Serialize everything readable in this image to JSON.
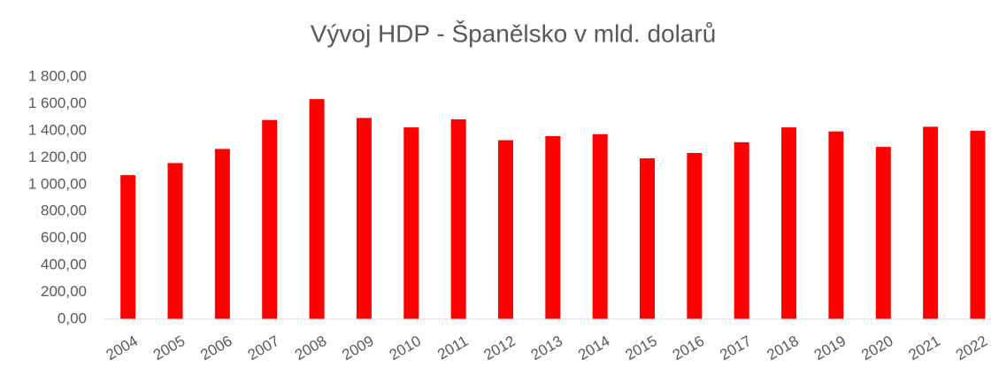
{
  "chart_data": {
    "type": "bar",
    "title": "Vývoj HDP - Španělsko v mld. dolarů",
    "categories": [
      "2004",
      "2005",
      "2006",
      "2007",
      "2008",
      "2009",
      "2010",
      "2011",
      "2012",
      "2013",
      "2014",
      "2015",
      "2016",
      "2017",
      "2018",
      "2019",
      "2020",
      "2021",
      "2022"
    ],
    "values": [
      1070,
      1160,
      1265,
      1480,
      1635,
      1495,
      1425,
      1485,
      1330,
      1360,
      1375,
      1195,
      1235,
      1315,
      1425,
      1395,
      1280,
      1430,
      1400
    ],
    "color": "#ff0000",
    "ylim": [
      0,
      1800
    ],
    "yticks": [
      {
        "value": 0,
        "label": "0,00"
      },
      {
        "value": 200,
        "label": "200,00"
      },
      {
        "value": 400,
        "label": "400,00"
      },
      {
        "value": 600,
        "label": "600,00"
      },
      {
        "value": 800,
        "label": "800,00"
      },
      {
        "value": 1000,
        "label": "1 000,00"
      },
      {
        "value": 1200,
        "label": "1 200,00"
      },
      {
        "value": 1400,
        "label": "1 400,00"
      },
      {
        "value": 1600,
        "label": "1 600,00"
      },
      {
        "value": 1800,
        "label": "1 800,00"
      }
    ],
    "grid": false
  }
}
